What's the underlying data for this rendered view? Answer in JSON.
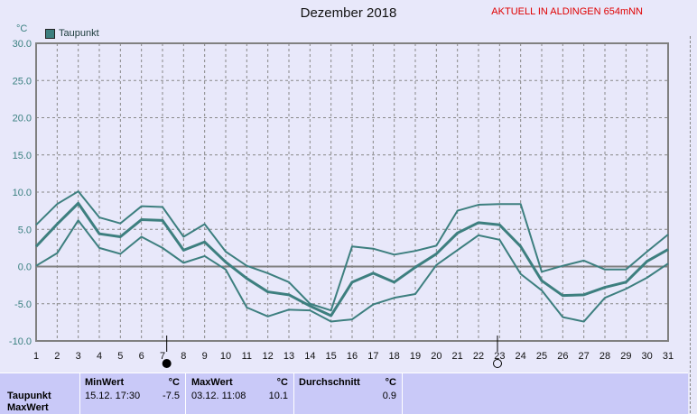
{
  "title": "Dezember 2018",
  "station": "AKTUELL IN ALDINGEN 654mNN",
  "unit": "°C",
  "legend": "Taupunkt",
  "chart_data": {
    "type": "line",
    "title": "Dezember 2018",
    "ylabel": "°C",
    "ylim": [
      -10,
      30
    ],
    "yticks": [
      "30.0",
      "25.0",
      "20.0",
      "15.0",
      "10.0",
      "5.0",
      "0.0",
      "-5.0",
      "-10.0"
    ],
    "x": [
      1,
      2,
      3,
      4,
      5,
      6,
      7,
      8,
      9,
      10,
      11,
      12,
      13,
      14,
      15,
      16,
      17,
      18,
      19,
      20,
      21,
      22,
      23,
      24,
      25,
      26,
      27,
      28,
      29,
      30,
      31
    ],
    "grid": true,
    "legend_position": "top-left",
    "color": "#3d7f7f",
    "series": [
      {
        "name": "Taupunkt max",
        "values": [
          5.6,
          8.4,
          10.1,
          6.6,
          5.8,
          8.1,
          8.0,
          4.0,
          5.7,
          2.0,
          0.1,
          -0.9,
          -2.1,
          -5.0,
          -5.9,
          2.7,
          2.4,
          1.6,
          2.1,
          2.8,
          7.5,
          8.3,
          8.4,
          8.4,
          -0.7,
          0.1,
          0.8,
          -0.4,
          -0.4,
          2.0,
          4.3
        ]
      },
      {
        "name": "Taupunkt",
        "values": [
          2.7,
          5.7,
          8.5,
          4.4,
          4.0,
          6.3,
          6.2,
          2.2,
          3.3,
          0.6,
          -1.6,
          -3.4,
          -3.8,
          -5.3,
          -6.6,
          -2.1,
          -0.9,
          -2.1,
          -0.1,
          1.7,
          4.5,
          5.9,
          5.6,
          2.7,
          -1.9,
          -3.9,
          -3.8,
          -2.8,
          -2.1,
          0.7,
          2.3
        ]
      },
      {
        "name": "Taupunkt min",
        "values": [
          0.1,
          1.8,
          6.2,
          2.5,
          1.7,
          4.0,
          2.5,
          0.5,
          1.4,
          -0.4,
          -5.5,
          -6.7,
          -5.8,
          -5.9,
          -7.4,
          -7.1,
          -5.1,
          -4.2,
          -3.7,
          0.2,
          2.2,
          4.2,
          3.6,
          -1.0,
          -3.2,
          -6.8,
          -7.4,
          -4.2,
          -3.0,
          -1.5,
          0.4
        ]
      }
    ],
    "moon_phases": [
      {
        "day": 7.2,
        "phase": "new-moon"
      },
      {
        "day": 22.9,
        "phase": "full-moon"
      }
    ]
  },
  "table": {
    "headers": {
      "min": "MinWert",
      "max": "MaxWert",
      "avg": "Durchschnitt",
      "unit": "°C"
    },
    "rows": [
      {
        "label": "Taupunkt",
        "min_time": "15.12.  17:30",
        "min_val": "-7.5",
        "max_time": "03.12.  11:08",
        "max_val": "10.1",
        "avg_val": "0.9"
      }
    ],
    "next_row_label": "MaxWert"
  }
}
